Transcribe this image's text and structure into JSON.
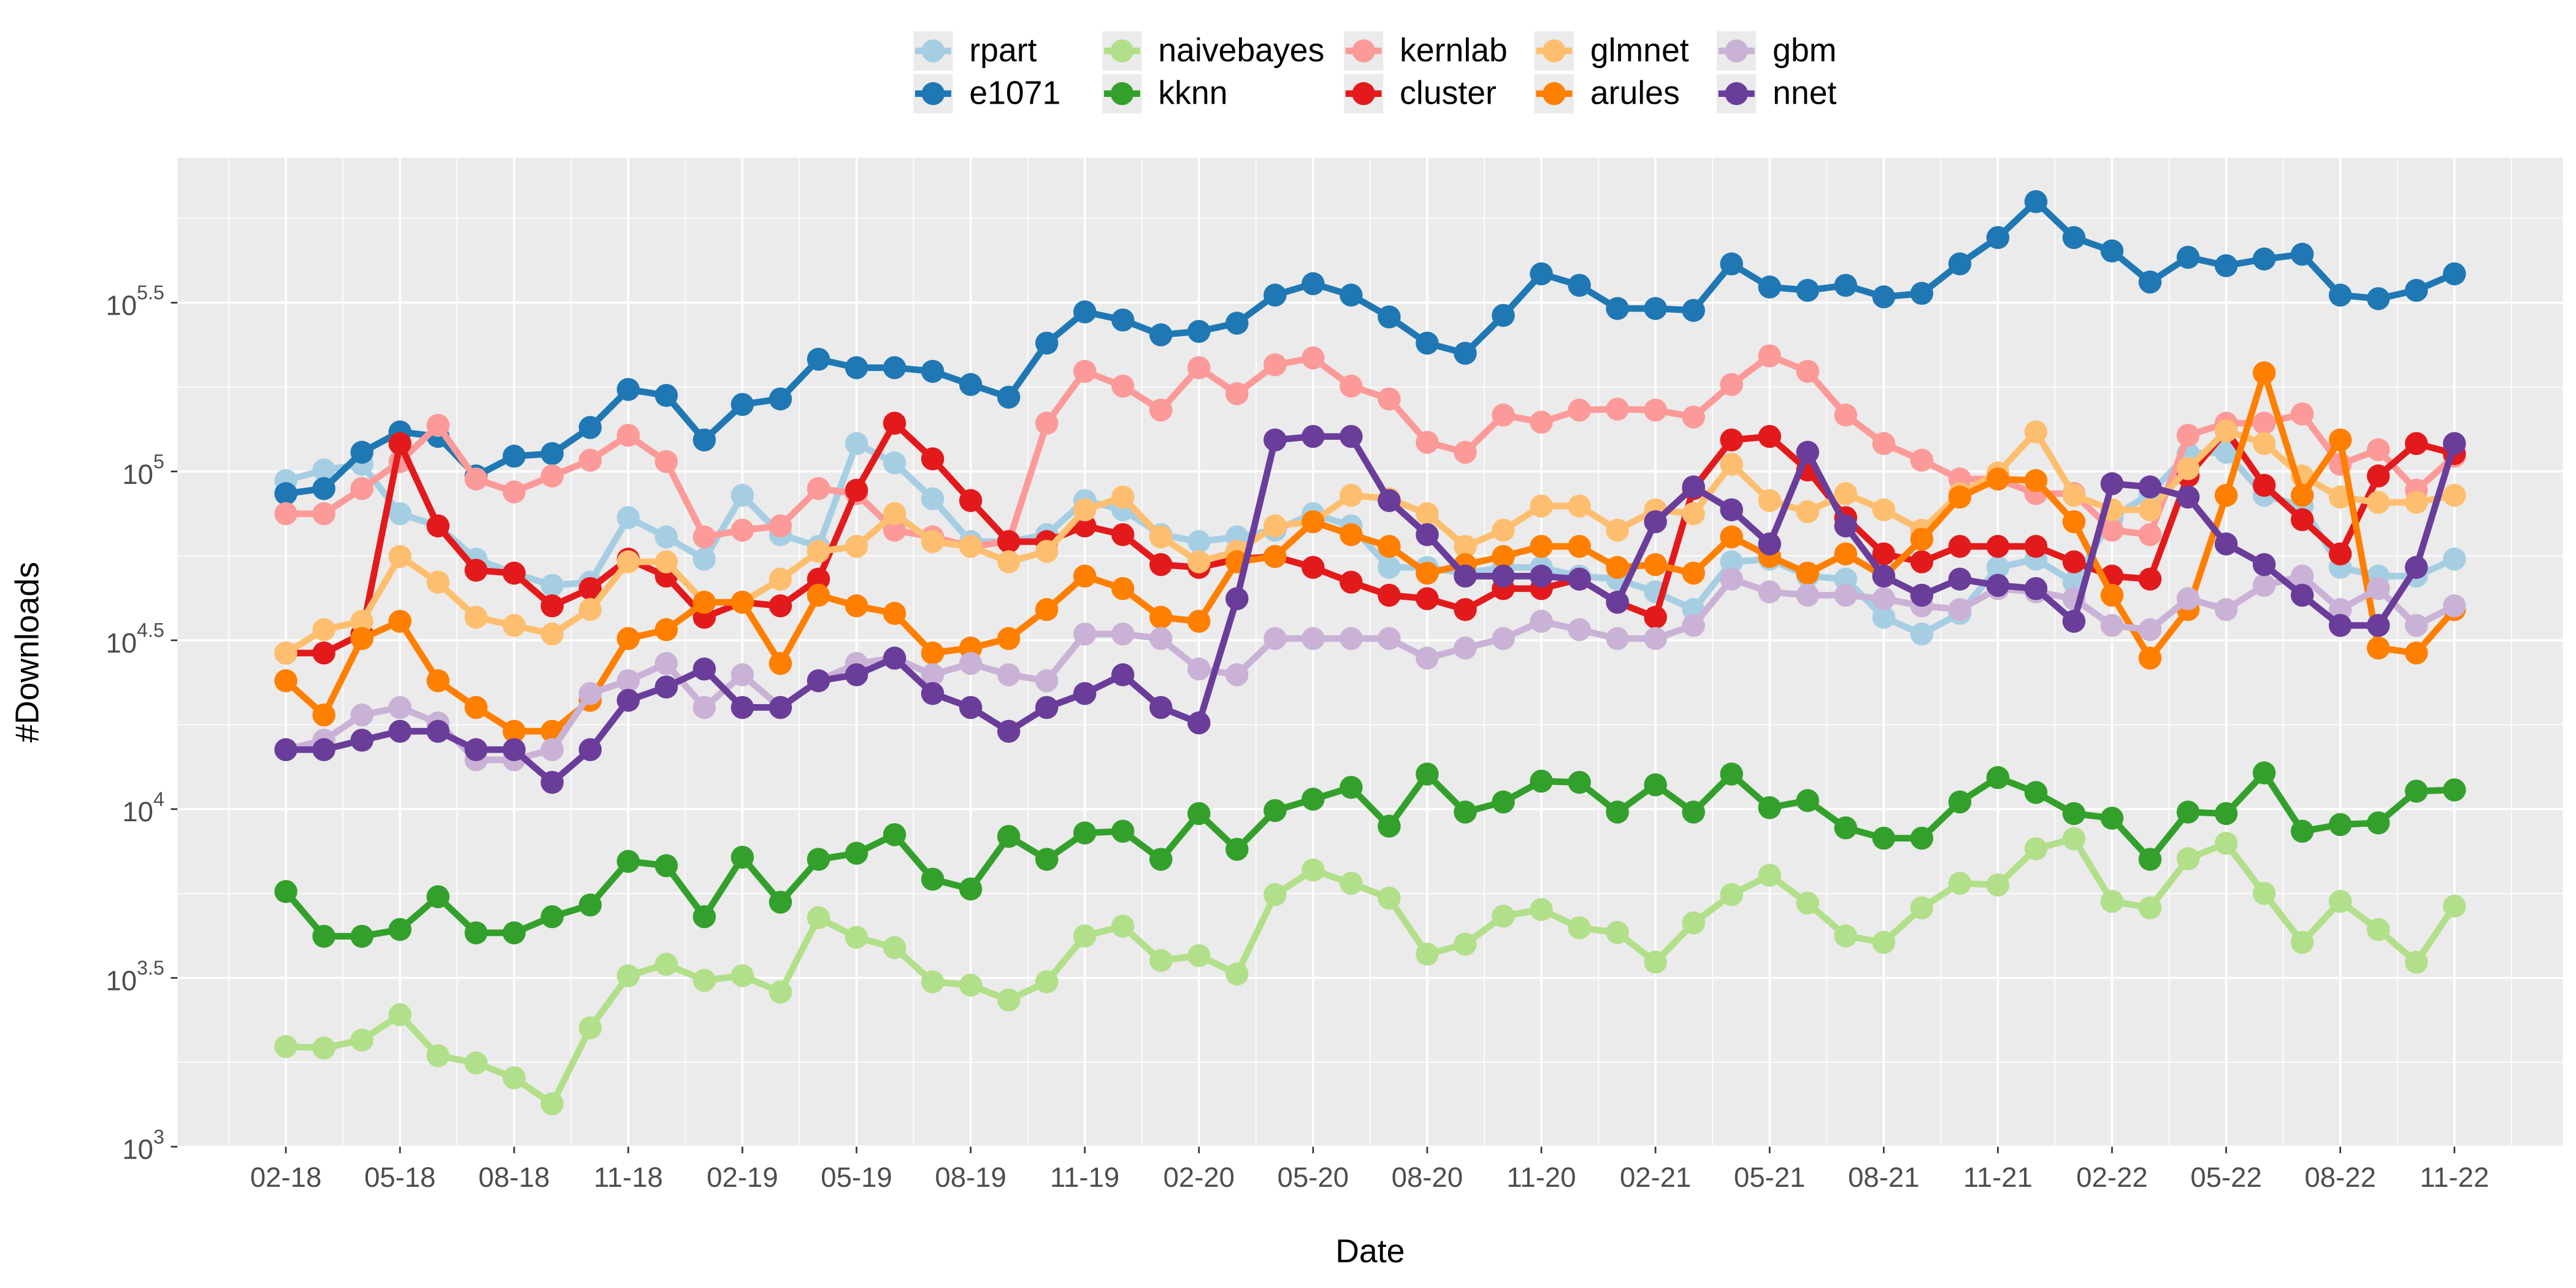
{
  "chart_data": {
    "type": "line",
    "x_label": "Date",
    "y_label": "#Downloads",
    "y_scale": "log",
    "grid": true,
    "legend_position": "top",
    "categories": [
      "02-18",
      null,
      null,
      "05-18",
      null,
      null,
      "08-18",
      null,
      null,
      "11-18",
      null,
      null,
      "02-19",
      null,
      null,
      "05-19",
      null,
      null,
      "08-19",
      null,
      null,
      "11-19",
      null,
      null,
      "02-20",
      null,
      null,
      "05-20",
      null,
      null,
      "08-20",
      null,
      null,
      "11-20",
      null,
      null,
      "02-21",
      null,
      null,
      "05-21",
      null,
      null,
      "08-21",
      null,
      null,
      "11-21",
      null,
      null,
      "02-22",
      null,
      null,
      "05-22",
      null,
      null,
      "08-22",
      null,
      null,
      "11-22"
    ],
    "ylim": [
      1000,
      850000
    ],
    "yticks": [
      {
        "value": 1000,
        "label": "10^3"
      },
      {
        "value": 3162.28,
        "label": "10^3.5"
      },
      {
        "value": 10000,
        "label": "10^4"
      },
      {
        "value": 31622.8,
        "label": "10^4.5"
      },
      {
        "value": 100000,
        "label": "10^5"
      },
      {
        "value": 316228,
        "label": "10^5.5"
      }
    ],
    "series": [
      {
        "name": "rpart",
        "color": "#a6cee3",
        "values": [
          94000,
          101000,
          105000,
          75000,
          69000,
          55000,
          50000,
          46000,
          47000,
          73000,
          64000,
          55000,
          85000,
          65000,
          60000,
          121000,
          106000,
          83000,
          62000,
          62000,
          65000,
          82000,
          77000,
          65000,
          62000,
          64000,
          67000,
          75000,
          69000,
          52000,
          52000,
          50000,
          52000,
          52000,
          49000,
          48000,
          44000,
          39000,
          54000,
          55000,
          49000,
          48000,
          37000,
          33000,
          38000,
          52000,
          55000,
          47000,
          73000,
          86000,
          113000,
          114000,
          85000,
          79000,
          52000,
          49000,
          49000,
          55000
        ]
      },
      {
        "name": "e1071",
        "color": "#1f78b4",
        "values": [
          86000,
          89000,
          114000,
          131000,
          127000,
          97000,
          111000,
          113000,
          135000,
          175000,
          168000,
          124000,
          158000,
          164000,
          215000,
          203000,
          203000,
          198000,
          181000,
          166000,
          240000,
          297000,
          281000,
          254000,
          260000,
          275000,
          333000,
          360000,
          333000,
          287000,
          240000,
          224000,
          290000,
          385000,
          356000,
          304000,
          304000,
          300000,
          412000,
          352000,
          344000,
          356000,
          329000,
          337000,
          412000,
          493000,
          630000,
          493000,
          450000,
          364000,
          431000,
          407000,
          426000,
          440000,
          333000,
          325000,
          344000,
          385000
        ]
      },
      {
        "name": "naivebayes",
        "color": "#b2df8a",
        "values": [
          1980,
          1960,
          2070,
          2460,
          1860,
          1770,
          1600,
          1340,
          2250,
          3210,
          3470,
          3110,
          3210,
          2870,
          4770,
          4170,
          3890,
          3080,
          3010,
          2720,
          3080,
          4210,
          4500,
          3560,
          3680,
          3250,
          5580,
          6600,
          6030,
          5450,
          3720,
          3980,
          4820,
          5040,
          4450,
          4310,
          3520,
          4600,
          5580,
          6370,
          5270,
          4210,
          4030,
          5100,
          6030,
          5960,
          7630,
          8170,
          5330,
          5100,
          7130,
          7920,
          5630,
          4030,
          5330,
          4400,
          3520,
          5160
        ]
      },
      {
        "name": "kknn",
        "color": "#33a02c",
        "values": [
          5700,
          4200,
          4200,
          4400,
          5500,
          4300,
          4300,
          4800,
          5200,
          7000,
          6800,
          4800,
          7200,
          5300,
          7100,
          7400,
          8400,
          6200,
          5800,
          8300,
          7100,
          8500,
          8600,
          7100,
          9700,
          7600,
          9900,
          10700,
          11600,
          8900,
          12700,
          9800,
          10500,
          12100,
          12000,
          9800,
          11800,
          9800,
          12700,
          10100,
          10600,
          8800,
          8200,
          8200,
          10500,
          12400,
          11200,
          9700,
          9400,
          7100,
          9800,
          9700,
          12800,
          8600,
          9000,
          9100,
          11300,
          11400
        ]
      },
      {
        "name": "kernlab",
        "color": "#fb9a99",
        "values": [
          75000,
          75000,
          89000,
          107000,
          137000,
          95000,
          87000,
          97000,
          108000,
          128000,
          107000,
          64000,
          67000,
          69000,
          89000,
          86000,
          67000,
          64000,
          60000,
          62000,
          139000,
          198000,
          179000,
          152000,
          203000,
          170000,
          207000,
          217000,
          179000,
          164000,
          122000,
          114000,
          147000,
          140000,
          152000,
          153000,
          152000,
          145000,
          181000,
          220000,
          198000,
          147000,
          121000,
          108000,
          95000,
          95000,
          86000,
          86000,
          67000,
          65000,
          128000,
          139000,
          139000,
          148000,
          105000,
          116000,
          88000,
          111000
        ]
      },
      {
        "name": "cluster",
        "color": "#e31a1c",
        "values": [
          29000,
          29000,
          33000,
          121000,
          69000,
          51000,
          50000,
          40000,
          45000,
          55000,
          49000,
          37000,
          41000,
          40000,
          48000,
          88000,
          139000,
          109000,
          82000,
          62000,
          62000,
          69000,
          65000,
          53000,
          52000,
          55000,
          56000,
          52000,
          47000,
          43000,
          42000,
          39000,
          45000,
          45000,
          48000,
          41000,
          37000,
          89000,
          124000,
          127000,
          101000,
          73000,
          57000,
          54000,
          60000,
          60000,
          60000,
          54000,
          49000,
          48000,
          97000,
          132000,
          91000,
          72000,
          57000,
          97000,
          121000,
          113000
        ]
      },
      {
        "name": "glmnet",
        "color": "#fdbf6f",
        "values": [
          29000,
          34000,
          36000,
          56000,
          47000,
          37000,
          35000,
          33000,
          39000,
          54000,
          54000,
          41000,
          41000,
          48000,
          58000,
          60000,
          75000,
          62000,
          60000,
          54000,
          58000,
          77000,
          84000,
          64000,
          54000,
          58000,
          69000,
          71000,
          85000,
          83000,
          75000,
          60000,
          67000,
          79000,
          79000,
          67000,
          77000,
          75000,
          105000,
          82000,
          76000,
          86000,
          77000,
          67000,
          86000,
          99000,
          131000,
          85000,
          77000,
          77000,
          102000,
          132000,
          121000,
          97000,
          84000,
          81000,
          81000,
          85000
        ]
      },
      {
        "name": "arules",
        "color": "#ff7f00",
        "values": [
          24000,
          19000,
          32000,
          36000,
          24000,
          20000,
          17000,
          17000,
          21000,
          32000,
          34000,
          41000,
          41000,
          27000,
          43000,
          40000,
          38000,
          29000,
          30000,
          32000,
          39000,
          49000,
          45000,
          37000,
          36000,
          54000,
          56000,
          71000,
          65000,
          60000,
          50000,
          53000,
          56000,
          60000,
          60000,
          52000,
          53000,
          50000,
          64000,
          56000,
          50000,
          57000,
          49000,
          63000,
          84000,
          95000,
          94000,
          71000,
          43000,
          28000,
          39000,
          85000,
          196000,
          85000,
          124000,
          30000,
          29000,
          39000
        ]
      },
      {
        "name": "gbm",
        "color": "#cab2d6",
        "values": [
          15000,
          16000,
          19000,
          20000,
          18000,
          14000,
          14000,
          15000,
          22000,
          24000,
          27000,
          20000,
          25000,
          20000,
          24000,
          27000,
          28000,
          25000,
          27000,
          25000,
          24000,
          33000,
          33000,
          32000,
          26000,
          25000,
          32000,
          32000,
          32000,
          32000,
          28000,
          30000,
          32000,
          36000,
          34000,
          32000,
          32000,
          35000,
          48000,
          44000,
          43000,
          43000,
          42000,
          40000,
          39000,
          45000,
          44000,
          42000,
          35000,
          34000,
          42000,
          39000,
          46000,
          49000,
          39000,
          45000,
          35000,
          40000
        ]
      },
      {
        "name": "nnet",
        "color": "#6a3d9a",
        "values": [
          15000,
          15000,
          16000,
          17000,
          17000,
          15000,
          15000,
          12000,
          15000,
          21000,
          23000,
          26000,
          20000,
          20000,
          24000,
          25000,
          28000,
          22000,
          20000,
          17000,
          20000,
          22000,
          25000,
          20000,
          18000,
          42000,
          124000,
          127000,
          127000,
          82000,
          65000,
          49000,
          49000,
          49000,
          48000,
          41000,
          71000,
          90000,
          77000,
          61000,
          114000,
          69000,
          49000,
          43000,
          48000,
          46000,
          45000,
          36000,
          92000,
          90000,
          84000,
          61000,
          53000,
          43000,
          35000,
          35000,
          52000,
          121000
        ]
      }
    ]
  }
}
